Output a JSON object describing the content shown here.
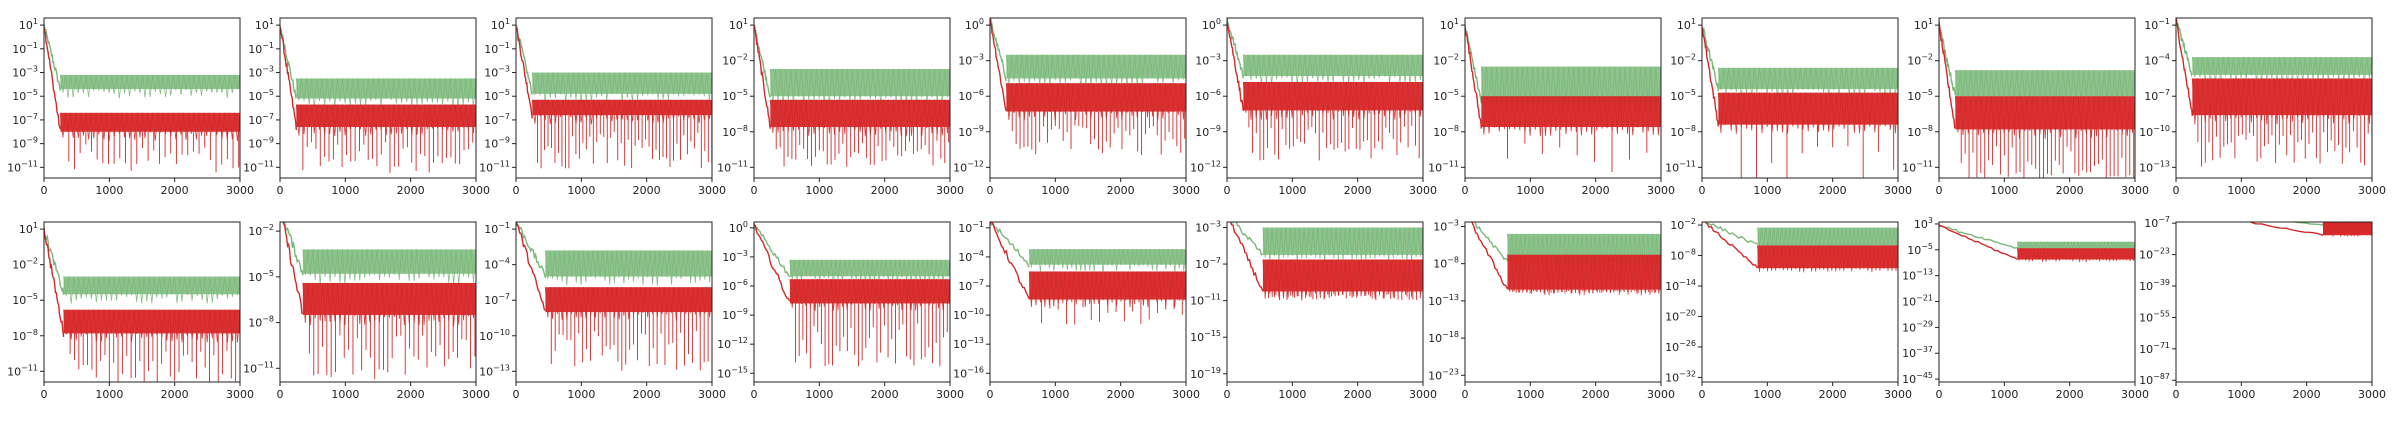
{
  "figure": {
    "colors": {
      "green": "#7ab87a",
      "red": "#d62728",
      "axis": "#222222"
    },
    "grid": false,
    "legend": "none"
  },
  "chart_data": [
    {
      "type": "line",
      "row": 1,
      "col": 1,
      "xlim": [
        0,
        3000
      ],
      "yscale": "log",
      "ytick_exponents": [
        1,
        -1,
        -3,
        -5,
        -7,
        -9,
        -11
      ],
      "xticks": [
        0,
        1000,
        2000,
        3000
      ],
      "series": [
        {
          "color": "green",
          "start_exp": 1,
          "end_x": 250,
          "lower_exp": -4.4,
          "upper_exp": -3.2,
          "dip_period": 260
        },
        {
          "color": "red",
          "start_exp": 1,
          "end_x": 250,
          "lower_exp": -8.0,
          "upper_exp": -6.4,
          "dip_exp": -11.5,
          "dip_period": 260
        }
      ]
    },
    {
      "type": "line",
      "row": 1,
      "col": 2,
      "xlim": [
        0,
        3000
      ],
      "yscale": "log",
      "ytick_exponents": [
        1,
        -1,
        -3,
        -5,
        -7,
        -9,
        -11
      ],
      "xticks": [
        0,
        1000,
        2000,
        3000
      ],
      "series": [
        {
          "color": "green",
          "start_exp": 1,
          "end_x": 250,
          "lower_exp": -5.2,
          "upper_exp": -3.5,
          "dip_period": 200
        },
        {
          "color": "red",
          "start_exp": 1,
          "end_x": 250,
          "lower_exp": -7.6,
          "upper_exp": -5.7,
          "dip_exp": -11.5,
          "dip_period": 200
        }
      ]
    },
    {
      "type": "line",
      "row": 1,
      "col": 3,
      "xlim": [
        0,
        3000
      ],
      "yscale": "log",
      "ytick_exponents": [
        1,
        -1,
        -3,
        -5,
        -7,
        -9,
        -11
      ],
      "xticks": [
        0,
        1000,
        2000,
        3000
      ],
      "series": [
        {
          "color": "green",
          "start_exp": 1,
          "end_x": 250,
          "lower_exp": -4.8,
          "upper_exp": -3.0,
          "dip_period": 160
        },
        {
          "color": "red",
          "start_exp": 1,
          "end_x": 250,
          "lower_exp": -6.6,
          "upper_exp": -5.3,
          "dip_exp": -11.2,
          "dip_period": 160
        }
      ]
    },
    {
      "type": "line",
      "row": 1,
      "col": 4,
      "xlim": [
        0,
        3000
      ],
      "yscale": "log",
      "ytick_exponents": [
        1,
        -2,
        -5,
        -8,
        -11
      ],
      "xticks": [
        0,
        1000,
        2000,
        3000
      ],
      "series": [
        {
          "color": "green",
          "start_exp": 1,
          "end_x": 250,
          "lower_exp": -5.0,
          "upper_exp": -2.7,
          "dip_period": 180
        },
        {
          "color": "red",
          "start_exp": 1,
          "end_x": 250,
          "lower_exp": -7.6,
          "upper_exp": -5.3,
          "dip_exp": -11.0,
          "dip_period": 180
        }
      ]
    },
    {
      "type": "line",
      "row": 1,
      "col": 5,
      "xlim": [
        0,
        3000
      ],
      "yscale": "log",
      "ytick_exponents": [
        0,
        -3,
        -6,
        -9,
        -12
      ],
      "xticks": [
        0,
        1000,
        2000,
        3000
      ],
      "series": [
        {
          "color": "green",
          "start_exp": 0.5,
          "end_x": 250,
          "lower_exp": -4.5,
          "upper_exp": -2.5,
          "dip_period": 180
        },
        {
          "color": "red",
          "start_exp": 0.5,
          "end_x": 250,
          "lower_exp": -7.3,
          "upper_exp": -4.9,
          "dip_exp": -11.2,
          "dip_period": 180
        }
      ]
    },
    {
      "type": "line",
      "row": 1,
      "col": 6,
      "xlim": [
        0,
        3000
      ],
      "yscale": "log",
      "ytick_exponents": [
        0,
        -3,
        -6,
        -9,
        -12
      ],
      "xticks": [
        0,
        1000,
        2000,
        3000
      ],
      "series": [
        {
          "color": "green",
          "start_exp": 0.5,
          "end_x": 250,
          "lower_exp": -4.3,
          "upper_exp": -2.5,
          "dip_period": 170
        },
        {
          "color": "red",
          "start_exp": 0.5,
          "end_x": 250,
          "lower_exp": -7.2,
          "upper_exp": -4.8,
          "dip_exp": -11.5,
          "dip_period": 170
        }
      ]
    },
    {
      "type": "line",
      "row": 1,
      "col": 7,
      "xlim": [
        0,
        3000
      ],
      "yscale": "log",
      "ytick_exponents": [
        1,
        -2,
        -5,
        -8,
        -11
      ],
      "xticks": [
        0,
        1000,
        2000,
        3000
      ],
      "series": [
        {
          "color": "green",
          "start_exp": 1,
          "end_x": 250,
          "lower_exp": -5.5,
          "upper_exp": -2.5,
          "dip_period": 800
        },
        {
          "color": "red",
          "start_exp": 1,
          "end_x": 250,
          "lower_exp": -7.6,
          "upper_exp": -5.0,
          "dip_exp": -11.5,
          "dip_period": 800
        }
      ]
    },
    {
      "type": "line",
      "row": 1,
      "col": 8,
      "xlim": [
        0,
        3000
      ],
      "yscale": "log",
      "ytick_exponents": [
        1,
        -2,
        -5,
        -8,
        -11
      ],
      "xticks": [
        0,
        1000,
        2000,
        3000
      ],
      "series": [
        {
          "color": "green",
          "start_exp": 1,
          "end_x": 250,
          "lower_exp": -4.4,
          "upper_exp": -2.6,
          "dip_period": 700
        },
        {
          "color": "red",
          "start_exp": 1,
          "end_x": 250,
          "lower_exp": -7.4,
          "upper_exp": -4.7,
          "dip_exp": -13.0,
          "dip_period": 700
        }
      ]
    },
    {
      "type": "line",
      "row": 1,
      "col": 9,
      "xlim": [
        0,
        3000
      ],
      "yscale": "log",
      "ytick_exponents": [
        1,
        -2,
        -5,
        -8,
        -11
      ],
      "xticks": [
        0,
        1000,
        2000,
        3000
      ],
      "series": [
        {
          "color": "green",
          "start_exp": 1,
          "end_x": 250,
          "lower_exp": -5.0,
          "upper_exp": -2.8,
          "dip_period": 180
        },
        {
          "color": "red",
          "start_exp": 1,
          "end_x": 250,
          "lower_exp": -7.8,
          "upper_exp": -5.0,
          "dip_exp": -12.5,
          "dip_period": 180
        }
      ]
    },
    {
      "type": "line",
      "row": 1,
      "col": 10,
      "xlim": [
        0,
        3000
      ],
      "yscale": "log",
      "ytick_exponents": [
        -1,
        -4,
        -7,
        -10,
        -13
      ],
      "xticks": [
        0,
        1000,
        2000,
        3000
      ],
      "series": [
        {
          "color": "green",
          "start_exp": -0.5,
          "end_x": 250,
          "lower_exp": -5.2,
          "upper_exp": -3.7,
          "dip_period": 170
        },
        {
          "color": "red",
          "start_exp": -0.5,
          "end_x": 250,
          "lower_exp": -8.6,
          "upper_exp": -5.5,
          "dip_exp": -13.0,
          "dip_period": 170
        }
      ]
    },
    {
      "type": "line",
      "row": 2,
      "col": 1,
      "xlim": [
        0,
        3000
      ],
      "yscale": "log",
      "ytick_exponents": [
        1,
        -2,
        -5,
        -8,
        -11
      ],
      "xticks": [
        0,
        1000,
        2000,
        3000
      ],
      "series": [
        {
          "color": "green",
          "start_exp": 1,
          "end_x": 300,
          "lower_exp": -4.5,
          "upper_exp": -3.0,
          "dip_period": 200
        },
        {
          "color": "red",
          "start_exp": 1,
          "end_x": 300,
          "lower_exp": -7.8,
          "upper_exp": -5.8,
          "dip_exp": -12.5,
          "dip_period": 200
        }
      ]
    },
    {
      "type": "line",
      "row": 2,
      "col": 2,
      "xlim": [
        0,
        3000
      ],
      "yscale": "log",
      "ytick_exponents": [
        -2,
        -5,
        -8,
        -11
      ],
      "xticks": [
        0,
        1000,
        2000,
        3000
      ],
      "series": [
        {
          "color": "green",
          "start_exp": -0.5,
          "end_x": 350,
          "lower_exp": -4.8,
          "upper_exp": -3.2,
          "dip_period": 200
        },
        {
          "color": "red",
          "start_exp": -0.5,
          "end_x": 350,
          "lower_exp": -7.5,
          "upper_exp": -5.4,
          "dip_exp": -11.8,
          "dip_period": 200
        }
      ]
    },
    {
      "type": "line",
      "row": 2,
      "col": 3,
      "xlim": [
        0,
        3000
      ],
      "yscale": "log",
      "ytick_exponents": [
        -1,
        -4,
        -7,
        -10,
        -13
      ],
      "xticks": [
        0,
        1000,
        2000,
        3000
      ],
      "series": [
        {
          "color": "green",
          "start_exp": -0.3,
          "end_x": 450,
          "lower_exp": -5.0,
          "upper_exp": -2.8,
          "dip_period": 180
        },
        {
          "color": "red",
          "start_exp": -0.3,
          "end_x": 450,
          "lower_exp": -8.0,
          "upper_exp": -5.9,
          "dip_exp": -13.0,
          "dip_period": 180
        }
      ]
    },
    {
      "type": "line",
      "row": 2,
      "col": 4,
      "xlim": [
        0,
        3000
      ],
      "yscale": "log",
      "ytick_exponents": [
        0,
        -3,
        -6,
        -9,
        -12,
        -15
      ],
      "xticks": [
        0,
        1000,
        2000,
        3000
      ],
      "series": [
        {
          "color": "green",
          "start_exp": 0.3,
          "end_x": 550,
          "lower_exp": -5.0,
          "upper_exp": -3.3,
          "dip_period": 170
        },
        {
          "color": "red",
          "start_exp": 0.3,
          "end_x": 550,
          "lower_exp": -7.8,
          "upper_exp": -5.3,
          "dip_exp": -14.5,
          "dip_period": 170
        }
      ]
    },
    {
      "type": "line",
      "row": 2,
      "col": 5,
      "xlim": [
        0,
        3000
      ],
      "yscale": "log",
      "ytick_exponents": [
        -1,
        -4,
        -7,
        -10,
        -13,
        -16
      ],
      "xticks": [
        0,
        1000,
        2000,
        3000
      ],
      "series": [
        {
          "color": "green",
          "start_exp": -0.3,
          "end_x": 600,
          "lower_exp": -4.8,
          "upper_exp": -3.2,
          "dip_period": 380
        },
        {
          "color": "red",
          "start_exp": -0.3,
          "end_x": 600,
          "lower_exp": -8.4,
          "upper_exp": -5.5,
          "dip_exp": -11.0,
          "dip_period": 380
        }
      ]
    },
    {
      "type": "line",
      "row": 2,
      "col": 6,
      "xlim": [
        0,
        3000
      ],
      "yscale": "log",
      "ytick_exponents": [
        -3,
        -7,
        -11,
        -15,
        -19
      ],
      "xticks": [
        0,
        1000,
        2000,
        3000
      ],
      "series": [
        {
          "color": "green",
          "start_exp": -1.5,
          "end_x": 550,
          "lower_exp": -6.0,
          "upper_exp": -3.0,
          "dip_period": 170
        },
        {
          "color": "red",
          "start_exp": -1.5,
          "end_x": 550,
          "lower_exp": -10.0,
          "upper_exp": -6.5,
          "dip_exp": -11.0,
          "dip_period": 170
        }
      ]
    },
    {
      "type": "line",
      "row": 2,
      "col": 7,
      "xlim": [
        0,
        3000
      ],
      "yscale": "log",
      "ytick_exponents": [
        -3,
        -8,
        -13,
        -18,
        -23
      ],
      "xticks": [
        0,
        1000,
        2000,
        3000
      ],
      "series": [
        {
          "color": "green",
          "start_exp": -1.0,
          "end_x": 650,
          "lower_exp": -7.8,
          "upper_exp": -4.0,
          "dip_period": 160
        },
        {
          "color": "red",
          "start_exp": -1.0,
          "end_x": 650,
          "lower_exp": -11.5,
          "upper_exp": -6.8,
          "dip_exp": -12.0,
          "dip_period": 160
        }
      ]
    },
    {
      "type": "line",
      "row": 2,
      "col": 8,
      "xlim": [
        0,
        3000
      ],
      "yscale": "log",
      "ytick_exponents": [
        -2,
        -8,
        -14,
        -20,
        -26,
        -32
      ],
      "xticks": [
        0,
        1000,
        2000,
        3000
      ],
      "series": [
        {
          "color": "green",
          "start_exp": -1.0,
          "end_x": 850,
          "lower_exp": -6.0,
          "upper_exp": -2.5,
          "dip_period": 160
        },
        {
          "color": "red",
          "start_exp": -1.0,
          "end_x": 850,
          "lower_exp": -10.5,
          "upper_exp": -6.0,
          "dip_exp": -10.5,
          "dip_period": 160
        }
      ]
    },
    {
      "type": "line",
      "row": 2,
      "col": 9,
      "xlim": [
        0,
        3000
      ],
      "yscale": "log",
      "ytick_exponents": [
        3,
        -5,
        -13,
        -21,
        -29,
        -37,
        -45
      ],
      "xticks": [
        0,
        1000,
        2000,
        3000
      ],
      "series": [
        {
          "color": "green",
          "start_exp": 2.5,
          "end_x": 1200,
          "lower_exp": -4.5,
          "upper_exp": -2.5,
          "dip_period": 150
        },
        {
          "color": "red",
          "start_exp": 2.5,
          "end_x": 1200,
          "lower_exp": -8.0,
          "upper_exp": -4.5,
          "dip_exp": -8.0,
          "dip_period": 150
        }
      ]
    },
    {
      "type": "line",
      "row": 2,
      "col": 10,
      "xlim": [
        0,
        3000
      ],
      "yscale": "log",
      "ytick_exponents": [
        -7,
        -23,
        -39,
        -55,
        -71,
        -87
      ],
      "xticks": [
        0,
        1000,
        2000,
        3000
      ],
      "series": [
        {
          "color": "green",
          "start_exp": 0.0,
          "end_x": 2250,
          "lower_exp": -8.0,
          "upper_exp": -3.0,
          "dip_period": 150
        },
        {
          "color": "red",
          "start_exp": 0.0,
          "end_x": 2250,
          "lower_exp": -13.0,
          "upper_exp": -5.0,
          "dip_exp": -13.0,
          "dip_period": 150
        }
      ]
    }
  ]
}
